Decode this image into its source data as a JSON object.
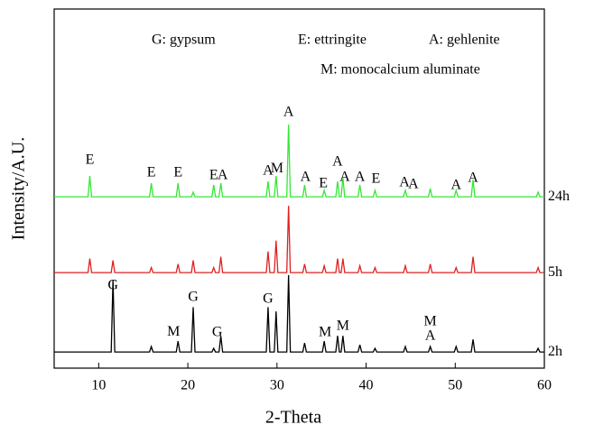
{
  "chart_data": {
    "type": "line",
    "x_label": "2-Theta",
    "y_label": "Intensity/A.U.",
    "xlim": [
      5,
      60
    ],
    "xticks": [
      10,
      20,
      30,
      40,
      50,
      60
    ],
    "ylim": [
      0,
      100
    ],
    "notes": [
      "G: gypsum",
      "E: ettringite",
      "A: gehlenite",
      "M: monocalcium aluminate"
    ],
    "x": [
      5,
      8.8,
      9.0,
      9.2,
      11.4,
      11.6,
      11.8,
      15.7,
      15.9,
      16.1,
      18.7,
      18.9,
      19.1,
      20.4,
      20.6,
      20.8,
      22.7,
      22.9,
      23.1,
      23.5,
      23.7,
      23.9,
      28.8,
      29.0,
      29.2,
      29.7,
      29.9,
      30.1,
      31.1,
      31.3,
      31.5,
      32.9,
      33.1,
      33.3,
      35.1,
      35.3,
      35.5,
      36.6,
      36.8,
      37.0,
      37.2,
      37.4,
      37.6,
      39.1,
      39.3,
      39.5,
      40.8,
      41.0,
      41.2,
      44.2,
      44.4,
      44.6,
      47.0,
      47.2,
      47.4,
      49.9,
      50.1,
      50.3,
      51.8,
      52.0,
      52.2,
      59.1,
      59.3,
      59.5,
      60
    ],
    "series": [
      {
        "name": "24h",
        "color": "#33e833",
        "values": [
          47.7,
          47.7,
          53.5,
          47.7,
          47.7,
          47.7,
          47.7,
          47.7,
          51.5,
          47.7,
          47.7,
          51.5,
          47.7,
          47.7,
          49,
          47.7,
          47.7,
          51,
          47.7,
          47.7,
          51.5,
          47.7,
          47.7,
          52,
          47.7,
          47.7,
          53.5,
          47.7,
          47.7,
          67.8,
          47.7,
          47.7,
          51,
          47.7,
          47.7,
          49.5,
          47.7,
          47.7,
          52,
          47.7,
          47.7,
          53,
          47.7,
          47.7,
          51,
          47.7,
          47.7,
          49.5,
          47.7,
          47.7,
          49.5,
          47.7,
          47.7,
          50,
          47.7,
          47.7,
          49.5,
          47.7,
          47.7,
          52.5,
          47.7,
          47.7,
          49,
          47.7,
          47.7
        ]
      },
      {
        "name": "5h",
        "color": "#e02020",
        "values": [
          26.6,
          26.6,
          30.5,
          26.6,
          26.6,
          30,
          26.6,
          26.6,
          28,
          26.6,
          26.6,
          29,
          26.6,
          26.6,
          30,
          26.6,
          26.6,
          28,
          26.6,
          26.6,
          31,
          26.6,
          26.6,
          32.5,
          26.6,
          26.6,
          35.5,
          26.6,
          26.6,
          45.2,
          26.6,
          26.6,
          29,
          26.6,
          26.6,
          28.5,
          26.6,
          26.6,
          30.5,
          26.6,
          26.6,
          30.5,
          26.6,
          26.6,
          28.5,
          26.6,
          26.6,
          28,
          26.6,
          26.6,
          28.5,
          26.6,
          26.6,
          29,
          26.6,
          26.6,
          28,
          26.6,
          26.6,
          31,
          26.6,
          26.6,
          28,
          26.6,
          26.6
        ]
      },
      {
        "name": "2h",
        "color": "#000000",
        "values": [
          4.5,
          4.5,
          4.5,
          4.5,
          4.5,
          24.6,
          4.5,
          4.5,
          6,
          4.5,
          4.5,
          7.5,
          4.5,
          4.5,
          17,
          4.5,
          4.5,
          5.5,
          4.5,
          4.5,
          9,
          4.5,
          4.5,
          17,
          4.5,
          4.5,
          15.8,
          4.5,
          4.5,
          25.9,
          4.5,
          4.5,
          7,
          4.5,
          4.5,
          7.5,
          4.5,
          4.5,
          9,
          4.5,
          4.5,
          9,
          4.5,
          4.5,
          6.5,
          4.5,
          4.5,
          5.5,
          4.5,
          4.5,
          6,
          4.5,
          4.5,
          6,
          4.5,
          4.5,
          6,
          4.5,
          4.5,
          8,
          4.5,
          4.5,
          5.5,
          4.5,
          4.5
        ]
      }
    ],
    "annotations": [
      {
        "text": "E",
        "x": 9.0,
        "y": 57.8
      },
      {
        "text": "E",
        "x": 15.9,
        "y": 54.3
      },
      {
        "text": "E",
        "x": 18.9,
        "y": 54.3
      },
      {
        "text": "E",
        "x": 22.9,
        "y": 53.5
      },
      {
        "text": "A",
        "x": 23.9,
        "y": 53.5
      },
      {
        "text": "A",
        "x": 29.0,
        "y": 54.8
      },
      {
        "text": "M",
        "x": 30.0,
        "y": 55.5
      },
      {
        "text": "A",
        "x": 31.3,
        "y": 71.1
      },
      {
        "text": "A",
        "x": 33.2,
        "y": 53
      },
      {
        "text": "E",
        "x": 35.2,
        "y": 51.3
      },
      {
        "text": "A",
        "x": 36.8,
        "y": 57.3
      },
      {
        "text": "A",
        "x": 37.6,
        "y": 53
      },
      {
        "text": "A",
        "x": 39.3,
        "y": 53
      },
      {
        "text": "E",
        "x": 41.1,
        "y": 52.5
      },
      {
        "text": "A",
        "x": 44.3,
        "y": 51.5
      },
      {
        "text": "A",
        "x": 45.3,
        "y": 51
      },
      {
        "text": "A",
        "x": 50.1,
        "y": 50.8
      },
      {
        "text": "A",
        "x": 52.0,
        "y": 52.8
      },
      {
        "text": "G",
        "x": 11.6,
        "y": 22.9
      },
      {
        "text": "M",
        "x": 18.4,
        "y": 10
      },
      {
        "text": "G",
        "x": 20.6,
        "y": 19.6
      },
      {
        "text": "G",
        "x": 23.3,
        "y": 9.8
      },
      {
        "text": "G",
        "x": 29.0,
        "y": 19.1
      },
      {
        "text": "M",
        "x": 35.4,
        "y": 9.8
      },
      {
        "text": "M",
        "x": 37.4,
        "y": 11.6
      },
      {
        "text": "M",
        "x": 47.2,
        "y": 12.8
      },
      {
        "text": "A",
        "x": 47.2,
        "y": 8.8
      }
    ]
  }
}
